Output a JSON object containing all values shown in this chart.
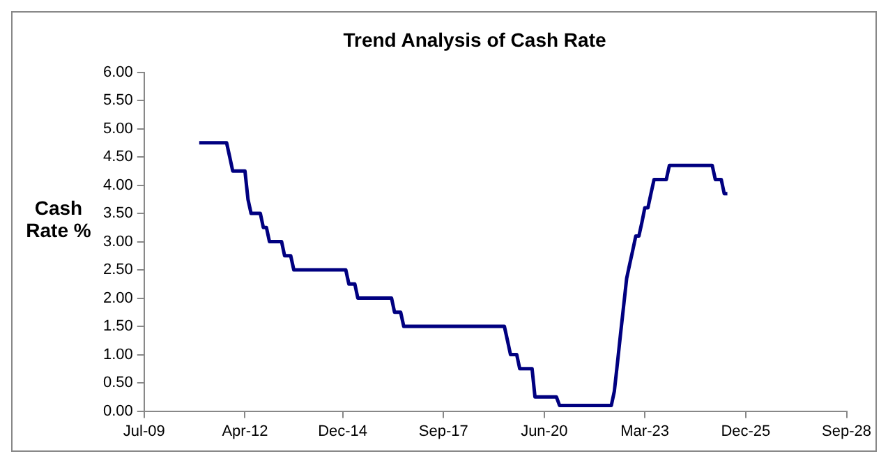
{
  "chart_data": {
    "type": "line",
    "title": "Trend Analysis of Cash Rate",
    "ylabel": "Cash Rate %",
    "x": [
      "2011-01",
      "2011-10",
      "2011-11",
      "2011-12",
      "2012-04",
      "2012-05",
      "2012-06",
      "2012-09",
      "2012-10",
      "2012-11",
      "2012-12",
      "2013-04",
      "2013-05",
      "2013-07",
      "2013-08",
      "2015-01",
      "2015-02",
      "2015-04",
      "2015-05",
      "2016-04",
      "2016-05",
      "2016-07",
      "2016-08",
      "2019-05",
      "2019-06",
      "2019-07",
      "2019-09",
      "2019-10",
      "2020-02",
      "2020-03",
      "2020-10",
      "2020-11",
      "2022-04",
      "2022-05",
      "2022-06",
      "2022-07",
      "2022-08",
      "2022-09",
      "2022-10",
      "2022-11",
      "2022-12",
      "2023-01",
      "2023-02",
      "2023-03",
      "2023-04",
      "2023-05",
      "2023-06",
      "2023-10",
      "2023-11",
      "2025-01",
      "2025-02",
      "2025-04",
      "2025-05",
      "2025-06"
    ],
    "series": [
      {
        "color": "#000080",
        "values": [
          4.75,
          4.75,
          4.5,
          4.25,
          4.25,
          3.75,
          3.5,
          3.5,
          3.25,
          3.25,
          3.0,
          3.0,
          2.75,
          2.75,
          2.5,
          2.5,
          2.25,
          2.25,
          2.0,
          2.0,
          1.75,
          1.75,
          1.5,
          1.5,
          1.25,
          1.0,
          1.0,
          0.75,
          0.75,
          0.25,
          0.25,
          0.1,
          0.1,
          0.35,
          0.85,
          1.35,
          1.85,
          2.35,
          2.6,
          2.85,
          3.1,
          3.1,
          3.35,
          3.6,
          3.6,
          3.85,
          4.1,
          4.1,
          4.35,
          4.35,
          4.1,
          4.1,
          3.85,
          3.85
        ]
      }
    ],
    "xlim": [
      "2009-07",
      "2028-09"
    ],
    "xticks": [
      {
        "value": "2009-07",
        "label": "Jul-09"
      },
      {
        "value": "2012-04",
        "label": "Apr-12"
      },
      {
        "value": "2014-12",
        "label": "Dec-14"
      },
      {
        "value": "2017-09",
        "label": "Sep-17"
      },
      {
        "value": "2020-06",
        "label": "Jun-20"
      },
      {
        "value": "2023-03",
        "label": "Mar-23"
      },
      {
        "value": "2025-12",
        "label": "Dec-25"
      },
      {
        "value": "2028-09",
        "label": "Sep-28"
      }
    ],
    "ylim": [
      0,
      6
    ],
    "yticks": [
      {
        "value": 0,
        "label": "0.00"
      },
      {
        "value": 0.5,
        "label": "0.50"
      },
      {
        "value": 1,
        "label": "1.00"
      },
      {
        "value": 1.5,
        "label": "1.50"
      },
      {
        "value": 2,
        "label": "2.00"
      },
      {
        "value": 2.5,
        "label": "2.50"
      },
      {
        "value": 3,
        "label": "3.00"
      },
      {
        "value": 3.5,
        "label": "3.50"
      },
      {
        "value": 4,
        "label": "4.00"
      },
      {
        "value": 4.5,
        "label": "4.50"
      },
      {
        "value": 5,
        "label": "5.00"
      },
      {
        "value": 5.5,
        "label": "5.50"
      },
      {
        "value": 6,
        "label": "6.00"
      }
    ],
    "grid": false,
    "legend": false,
    "marker": "none",
    "line_style": "solid"
  }
}
